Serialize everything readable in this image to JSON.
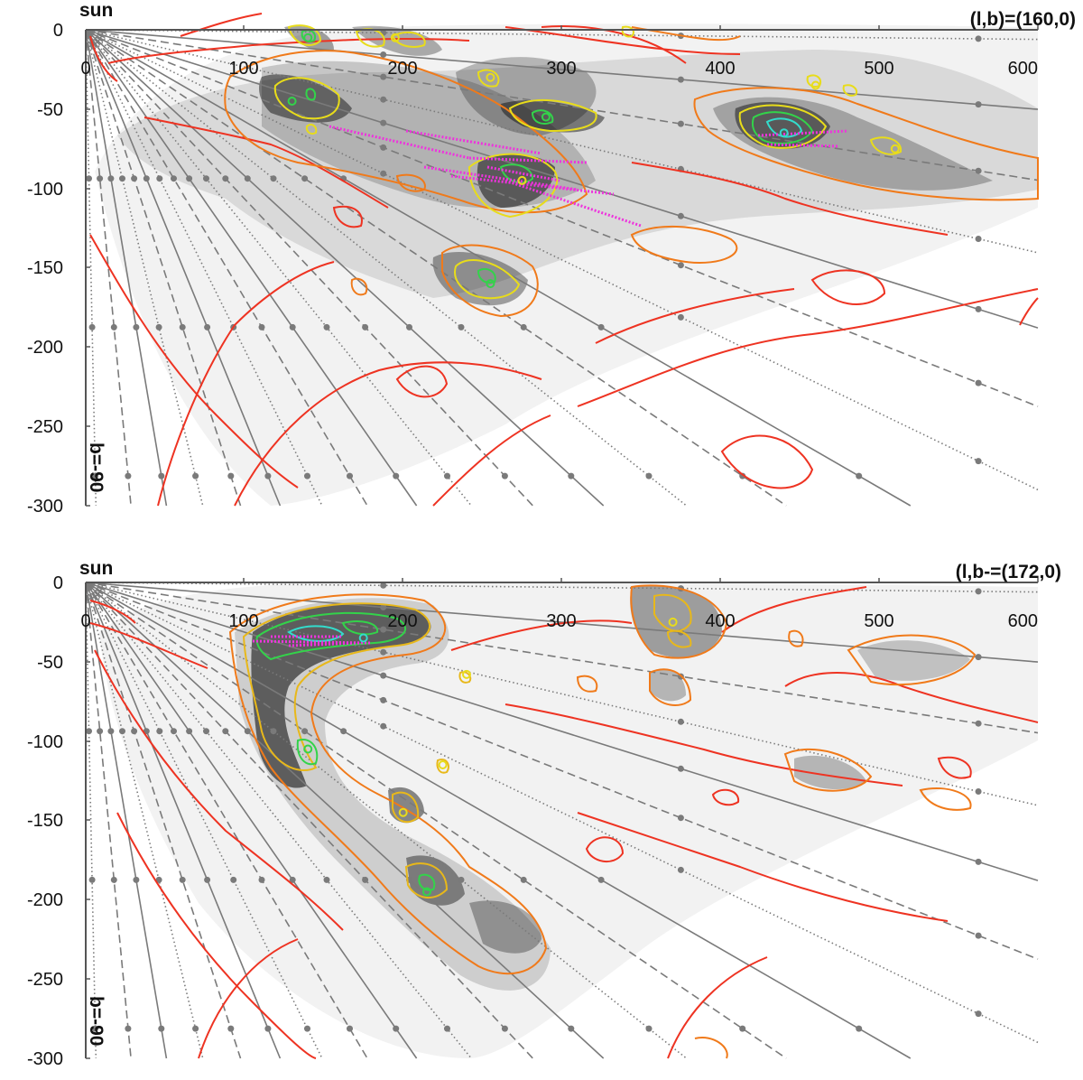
{
  "colors": {
    "background": "#ffffff",
    "axis": "#555555",
    "rays": "#7a7a7a",
    "density_fill": "#000000",
    "contour_red": "#ee3322",
    "contour_orange": "#f07a1a",
    "contour_yellow": "#e8dc1a",
    "contour_green": "#33d34a",
    "contour_cyan": "#33dccc",
    "vectors_magenta": "#ee33dd"
  },
  "chart_data": [
    {
      "type": "heatmap",
      "sun_label": "sun",
      "los_label": "(l,b)=(160,0)",
      "pole_label": "b=-90",
      "x_ticks": [
        0,
        100,
        200,
        300,
        400,
        500,
        600
      ],
      "y_ticks": [
        0,
        -50,
        -100,
        -150,
        -200,
        -250,
        -300
      ],
      "xlim": [
        0,
        600
      ],
      "ylim": [
        -300,
        0
      ],
      "dust_clouds": [
        {
          "x": 130,
          "y": -45,
          "level": "green"
        },
        {
          "x": 140,
          "y": -5,
          "level": "green"
        },
        {
          "x": 195,
          "y": -5,
          "level": "yellow"
        },
        {
          "x": 255,
          "y": -30,
          "level": "yellow"
        },
        {
          "x": 290,
          "y": -55,
          "level": "green"
        },
        {
          "x": 275,
          "y": -95,
          "level": "yellow"
        },
        {
          "x": 255,
          "y": -160,
          "level": "green"
        },
        {
          "x": 440,
          "y": -65,
          "level": "cyan"
        },
        {
          "x": 510,
          "y": -75,
          "level": "yellow"
        },
        {
          "x": 460,
          "y": -35,
          "level": "yellow"
        }
      ]
    },
    {
      "type": "heatmap",
      "sun_label": "sun",
      "los_label": "(l,b-=(172,0)",
      "pole_label": "b=-90",
      "x_ticks": [
        0,
        100,
        200,
        300,
        400,
        500,
        600
      ],
      "y_ticks": [
        0,
        -50,
        -100,
        -150,
        -200,
        -250,
        -300
      ],
      "xlim": [
        0,
        600
      ],
      "ylim": [
        -300,
        0
      ],
      "dust_clouds": [
        {
          "x": 175,
          "y": -35,
          "level": "cyan"
        },
        {
          "x": 140,
          "y": -105,
          "level": "green"
        },
        {
          "x": 200,
          "y": -145,
          "level": "yellow"
        },
        {
          "x": 215,
          "y": -195,
          "level": "green"
        },
        {
          "x": 370,
          "y": -25,
          "level": "yellow"
        },
        {
          "x": 240,
          "y": -58,
          "level": "yellow"
        },
        {
          "x": 225,
          "y": -115,
          "level": "yellow"
        }
      ]
    }
  ]
}
